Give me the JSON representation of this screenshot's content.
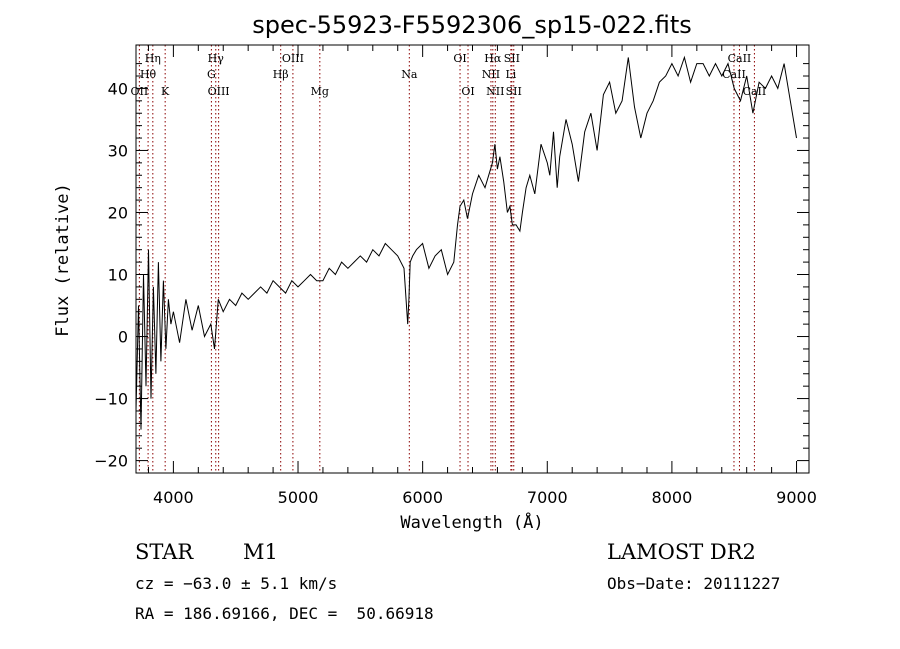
{
  "chart_data": {
    "type": "line",
    "title": "spec-55923-F5592306_sp15-022.fits",
    "xlabel": "Wavelength (Å)",
    "ylabel": "Flux (relative)",
    "xlim": [
      3700,
      9100
    ],
    "ylim": [
      -22,
      47
    ],
    "xticks": [
      4000,
      5000,
      6000,
      7000,
      8000,
      9000
    ],
    "yticks": [
      -20,
      -10,
      0,
      10,
      20,
      30,
      40
    ],
    "grid": false,
    "legend": "none",
    "line_color": "#000000",
    "marker_color": "#8b0000",
    "spectral_lines": [
      {
        "label": "Hη",
        "wavelength": 3835,
        "row": 0
      },
      {
        "label": "Hθ",
        "wavelength": 3797,
        "row": 1
      },
      {
        "label": "OII",
        "wavelength": 3727,
        "row": 2
      },
      {
        "label": "K",
        "wavelength": 3934,
        "row": 2
      },
      {
        "label": "Hγ",
        "wavelength": 4340,
        "row": 0
      },
      {
        "label": "G",
        "wavelength": 4305,
        "row": 1
      },
      {
        "label": "OIII",
        "wavelength": 4363,
        "row": 2
      },
      {
        "label": "OIII",
        "wavelength": 4959,
        "row": 0
      },
      {
        "label": "Hβ",
        "wavelength": 4861,
        "row": 1
      },
      {
        "label": "Mg",
        "wavelength": 5175,
        "row": 2
      },
      {
        "label": "Na",
        "wavelength": 5893,
        "row": 1
      },
      {
        "label": "OI",
        "wavelength": 6300,
        "row": 0
      },
      {
        "label": "OI",
        "wavelength": 6364,
        "row": 2
      },
      {
        "label": "Hα",
        "wavelength": 6563,
        "row": 0
      },
      {
        "label": "SII",
        "wavelength": 6716,
        "row": 0
      },
      {
        "label": "NII",
        "wavelength": 6548,
        "row": 1
      },
      {
        "label": "Li",
        "wavelength": 6708,
        "row": 1
      },
      {
        "label": "NII",
        "wavelength": 6583,
        "row": 2
      },
      {
        "label": "SII",
        "wavelength": 6731,
        "row": 2
      },
      {
        "label": "CaII",
        "wavelength": 8542,
        "row": 0
      },
      {
        "label": "CaII",
        "wavelength": 8498,
        "row": 1
      },
      {
        "label": "CaII",
        "wavelength": 8662,
        "row": 2
      }
    ],
    "series": [
      {
        "x": [
          3700,
          3720,
          3740,
          3760,
          3780,
          3800,
          3820,
          3840,
          3860,
          3880,
          3900,
          3920,
          3940,
          3960,
          3980,
          4000,
          4050,
          4100,
          4150,
          4200,
          4250,
          4300,
          4330,
          4360,
          4400,
          4450,
          4500,
          4550,
          4600,
          4650,
          4700,
          4750,
          4800,
          4850,
          4900,
          4950,
          5000,
          5050,
          5100,
          5150,
          5200,
          5250,
          5300,
          5350,
          5400,
          5450,
          5500,
          5550,
          5600,
          5650,
          5700,
          5750,
          5800,
          5850,
          5880,
          5890,
          5900,
          5920,
          5950,
          6000,
          6050,
          6100,
          6150,
          6200,
          6250,
          6280,
          6300,
          6330,
          6360,
          6400,
          6450,
          6500,
          6530,
          6560,
          6580,
          6600,
          6620,
          6650,
          6680,
          6700,
          6720,
          6750,
          6780,
          6800,
          6830,
          6860,
          6900,
          6950,
          7000,
          7020,
          7050,
          7080,
          7100,
          7150,
          7200,
          7250,
          7300,
          7350,
          7400,
          7450,
          7500,
          7550,
          7600,
          7650,
          7700,
          7750,
          7800,
          7850,
          7900,
          7950,
          8000,
          8050,
          8100,
          8150,
          8200,
          8250,
          8300,
          8350,
          8400,
          8450,
          8500,
          8550,
          8600,
          8650,
          8700,
          8750,
          8800,
          8850,
          8900,
          8950,
          9000
        ],
        "y": [
          -12,
          5,
          -15,
          10,
          -8,
          14,
          -10,
          8,
          -6,
          12,
          -4,
          9,
          -2,
          6,
          2,
          4,
          -1,
          6,
          1,
          5,
          0,
          2,
          -2,
          6,
          4,
          6,
          5,
          7,
          6,
          7,
          8,
          7,
          9,
          8,
          7,
          9,
          8,
          9,
          10,
          9,
          9,
          11,
          10,
          12,
          11,
          12,
          13,
          12,
          14,
          13,
          15,
          14,
          13,
          11,
          2,
          6,
          12,
          13,
          14,
          15,
          11,
          13,
          14,
          10,
          12,
          18,
          21,
          22,
          19,
          23,
          26,
          24,
          26,
          28,
          31,
          27,
          29,
          25,
          20,
          21,
          18,
          18,
          17,
          20,
          24,
          26,
          23,
          31,
          28,
          26,
          33,
          24,
          29,
          35,
          31,
          25,
          33,
          36,
          30,
          39,
          41,
          36,
          38,
          45,
          37,
          32,
          36,
          38,
          41,
          42,
          44,
          42,
          45,
          41,
          44,
          44,
          42,
          44,
          42,
          44,
          40,
          38,
          42,
          36,
          41,
          40,
          42,
          40,
          44,
          38,
          32
        ]
      }
    ]
  },
  "info": {
    "object_class": "STAR",
    "subclass": "M1",
    "survey": "LAMOST DR2",
    "cz": "cz = −63.0 ± 5.1 km/s",
    "obs_date": "Obs−Date: 20111227",
    "coords": "RA = 186.69166, DEC =  50.66918"
  }
}
